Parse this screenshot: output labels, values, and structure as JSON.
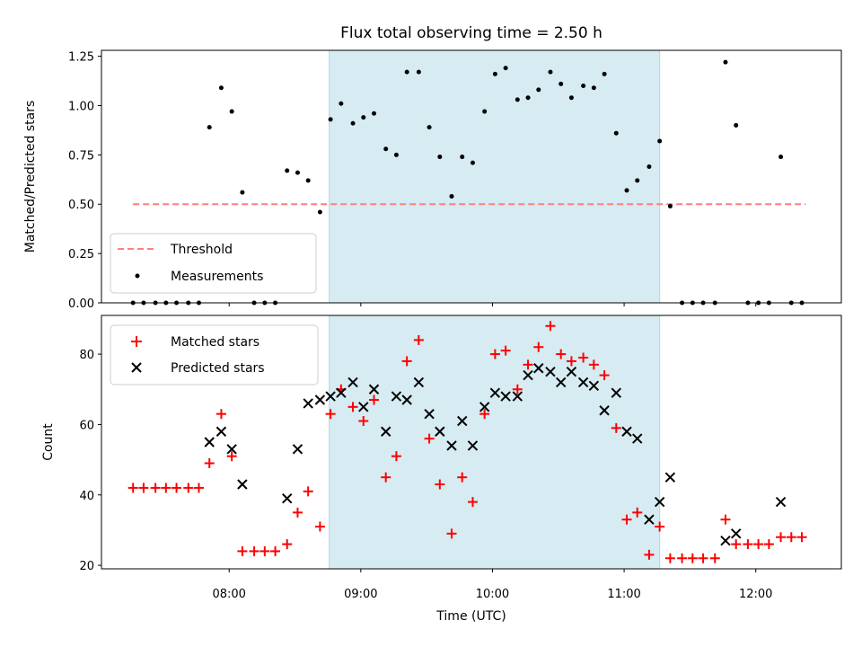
{
  "chart_data": {
    "type": "scatter",
    "title": "Flux total observing time = 2.50 h",
    "x_tick_labels": [
      "08:00",
      "09:00",
      "10:00",
      "11:00",
      "12:00"
    ],
    "x_tick_values_hours": [
      8,
      9,
      10,
      11,
      12
    ],
    "xlabel": "Time (UTC)",
    "xlim_hours": [
      7.03,
      12.65
    ],
    "shaded_interval_hours": [
      8.76,
      11.27
    ],
    "shade_color": "#add8e6",
    "top_panel": {
      "ylabel": "Matched/Predicted stars",
      "ylim": [
        0,
        1.28
      ],
      "yticks": [
        "0.00",
        "0.25",
        "0.50",
        "0.75",
        "1.00",
        "1.25"
      ],
      "yticks_values": [
        0,
        0.25,
        0.5,
        0.75,
        1.0,
        1.25
      ],
      "threshold": {
        "name": "Threshold",
        "value": 0.5,
        "x_range_hours": [
          7.27,
          12.38
        ],
        "color": "#ff7f7f"
      },
      "measurements": {
        "name": "Measurements",
        "color": "#000000",
        "x": [
          7.27,
          7.35,
          7.44,
          7.52,
          7.6,
          7.69,
          7.77,
          7.85,
          7.94,
          8.02,
          8.1,
          8.19,
          8.27,
          8.35,
          8.44,
          8.52,
          8.6,
          8.69,
          8.77,
          8.85,
          8.94,
          9.02,
          9.1,
          9.19,
          9.27,
          9.35,
          9.44,
          9.52,
          9.6,
          9.69,
          9.77,
          9.85,
          9.94,
          10.02,
          10.1,
          10.19,
          10.27,
          10.35,
          10.44,
          10.52,
          10.6,
          10.69,
          10.77,
          10.85,
          10.94,
          11.02,
          11.1,
          11.19,
          11.27,
          11.35,
          11.44,
          11.52,
          11.6,
          11.69,
          11.77,
          11.85,
          11.94,
          12.02,
          12.1,
          12.19,
          12.27,
          12.35
        ],
        "y": [
          0,
          0,
          0,
          0,
          0,
          0,
          0,
          0.89,
          1.09,
          0.97,
          0.56,
          0,
          0,
          0,
          0.67,
          0.66,
          0.62,
          0.46,
          0.93,
          1.01,
          0.91,
          0.94,
          0.96,
          0.78,
          0.75,
          1.17,
          1.17,
          0.89,
          0.74,
          0.54,
          0.74,
          0.71,
          0.97,
          1.16,
          1.19,
          1.03,
          1.04,
          1.08,
          1.17,
          1.11,
          1.04,
          1.1,
          1.09,
          1.16,
          0.86,
          0.57,
          0.62,
          0.69,
          0.82,
          0.49,
          0,
          0,
          0,
          0,
          1.22,
          0.9,
          0,
          0,
          0,
          0.74,
          0,
          0
        ]
      }
    },
    "bottom_panel": {
      "ylabel": "Count",
      "ylim": [
        19,
        91
      ],
      "yticks": [
        "20",
        "40",
        "60",
        "80"
      ],
      "yticks_values": [
        20,
        40,
        60,
        80
      ],
      "matched": {
        "name": "Matched stars",
        "color": "#ff0000",
        "marker": "plus",
        "x": [
          7.27,
          7.35,
          7.44,
          7.52,
          7.6,
          7.69,
          7.77,
          7.85,
          7.94,
          8.02,
          8.1,
          8.19,
          8.27,
          8.35,
          8.44,
          8.52,
          8.6,
          8.69,
          8.77,
          8.85,
          8.94,
          9.02,
          9.1,
          9.19,
          9.27,
          9.35,
          9.44,
          9.52,
          9.6,
          9.69,
          9.77,
          9.85,
          9.94,
          10.02,
          10.1,
          10.19,
          10.27,
          10.35,
          10.44,
          10.52,
          10.6,
          10.69,
          10.77,
          10.85,
          10.94,
          11.02,
          11.1,
          11.19,
          11.27,
          11.35,
          11.44,
          11.52,
          11.6,
          11.69,
          11.77,
          11.85,
          11.94,
          12.02,
          12.1,
          12.19,
          12.27,
          12.35
        ],
        "y": [
          42,
          42,
          42,
          42,
          42,
          42,
          42,
          49,
          63,
          51,
          24,
          24,
          24,
          24,
          26,
          35,
          41,
          31,
          63,
          70,
          65,
          61,
          67,
          45,
          51,
          78,
          84,
          56,
          43,
          29,
          45,
          38,
          63,
          80,
          81,
          70,
          77,
          82,
          88,
          80,
          78,
          79,
          77,
          74,
          59,
          33,
          35,
          23,
          31,
          22,
          22,
          22,
          22,
          22,
          33,
          26,
          26,
          26,
          26,
          28,
          28,
          28
        ]
      },
      "predicted": {
        "name": "Predicted stars",
        "color": "#000000",
        "marker": "x",
        "x": [
          7.85,
          7.94,
          8.02,
          8.1,
          8.44,
          8.52,
          8.6,
          8.69,
          8.77,
          8.85,
          8.94,
          9.02,
          9.1,
          9.19,
          9.27,
          9.35,
          9.44,
          9.52,
          9.6,
          9.69,
          9.77,
          9.85,
          9.94,
          10.02,
          10.1,
          10.19,
          10.27,
          10.35,
          10.44,
          10.52,
          10.6,
          10.69,
          10.77,
          10.85,
          10.94,
          11.02,
          11.1,
          11.19,
          11.27,
          11.35,
          11.77,
          11.85,
          12.19
        ],
        "y": [
          55,
          58,
          53,
          43,
          39,
          53,
          66,
          67,
          68,
          69,
          72,
          65,
          70,
          58,
          68,
          67,
          72,
          63,
          58,
          54,
          61,
          54,
          65,
          69,
          68,
          68,
          74,
          76,
          75,
          72,
          75,
          72,
          71,
          64,
          69,
          58,
          56,
          33,
          38,
          45,
          27,
          29,
          38
        ]
      }
    }
  }
}
